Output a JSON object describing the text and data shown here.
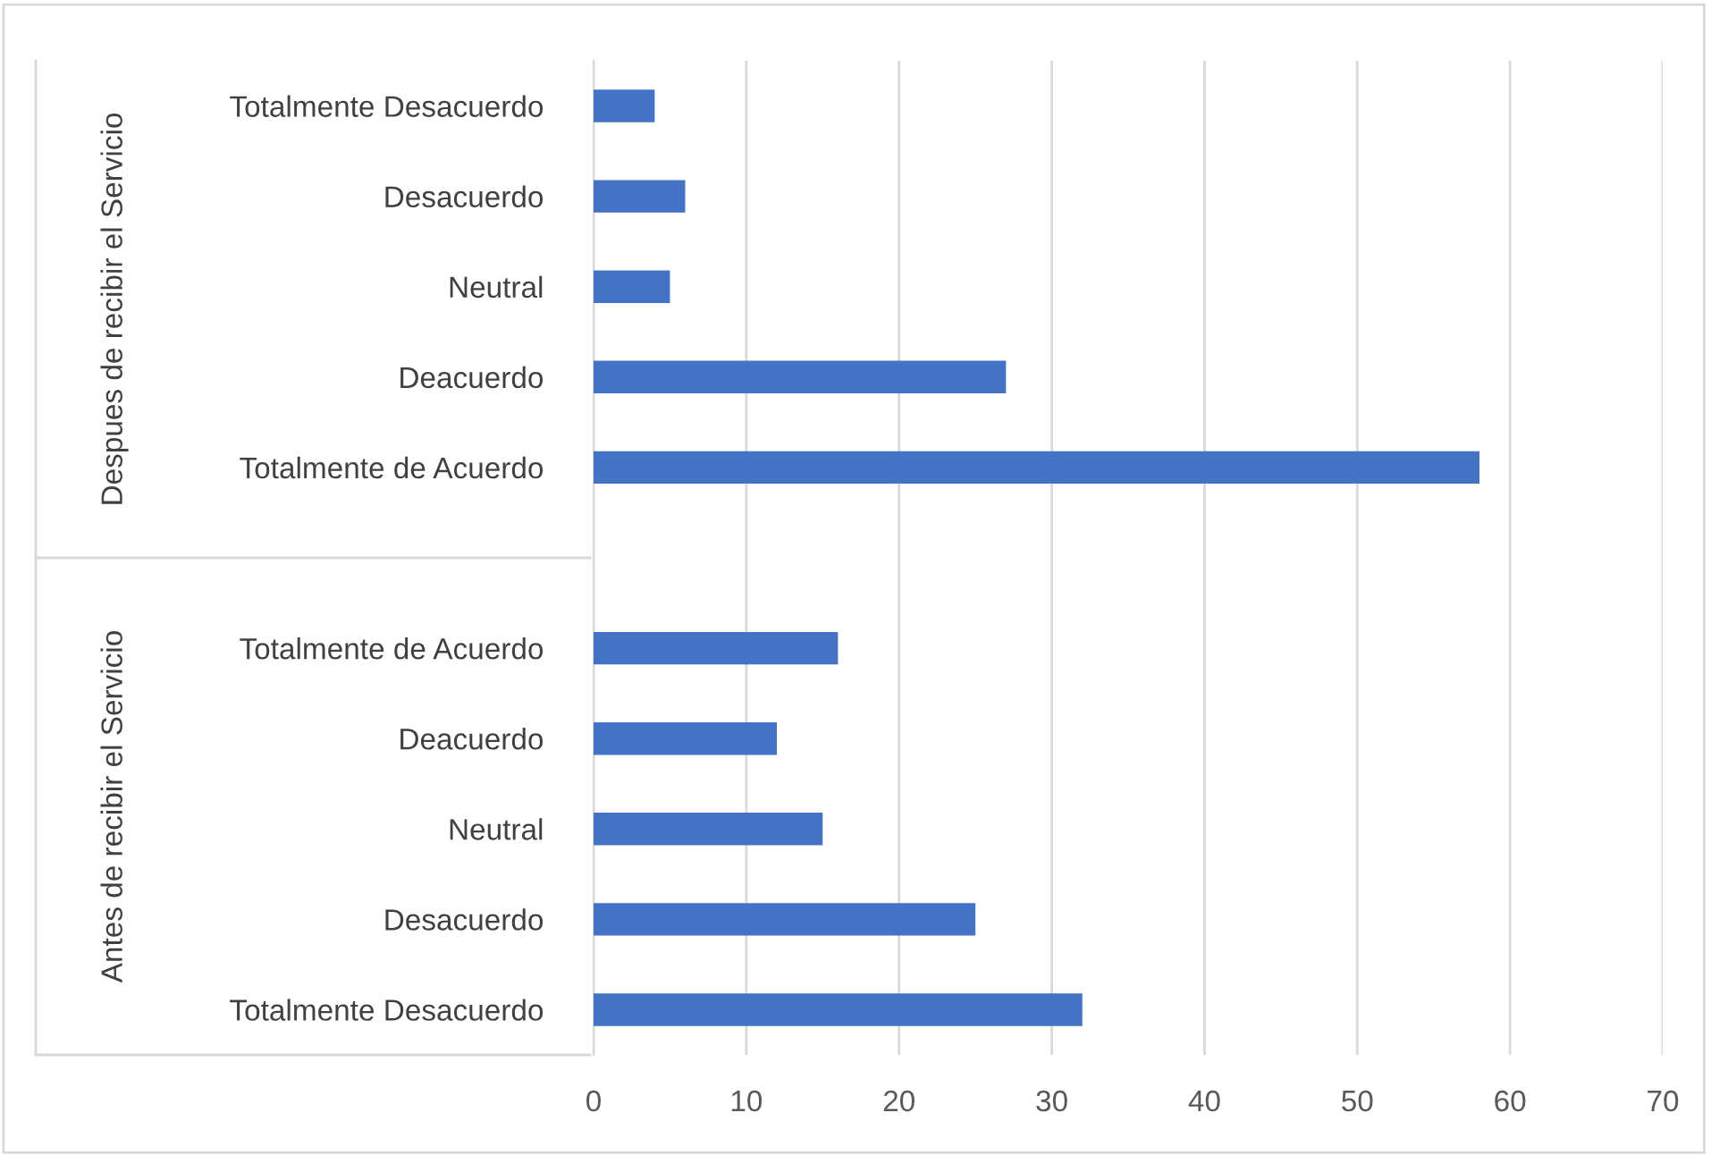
{
  "chart_data": {
    "type": "bar",
    "orientation": "horizontal",
    "categories": [
      "Totalmente Desacuerdo",
      "Desacuerdo",
      "Neutral",
      "Deacuerdo",
      "Totalmente de Acuerdo",
      null,
      "Totalmente de Acuerdo",
      "Deacuerdo",
      "Neutral",
      "Desacuerdo",
      "Totalmente Desacuerdo"
    ],
    "values": [
      4,
      6,
      5,
      27,
      58,
      null,
      16,
      12,
      15,
      25,
      32
    ],
    "color": "#4472c4",
    "xlim": [
      0,
      70
    ],
    "xticks": [
      0,
      10,
      20,
      30,
      40,
      50,
      60,
      70
    ],
    "grid": "x",
    "annotations": [
      "Despues de recibir el Servicio",
      "Antes de recibir el Servicio"
    ]
  }
}
